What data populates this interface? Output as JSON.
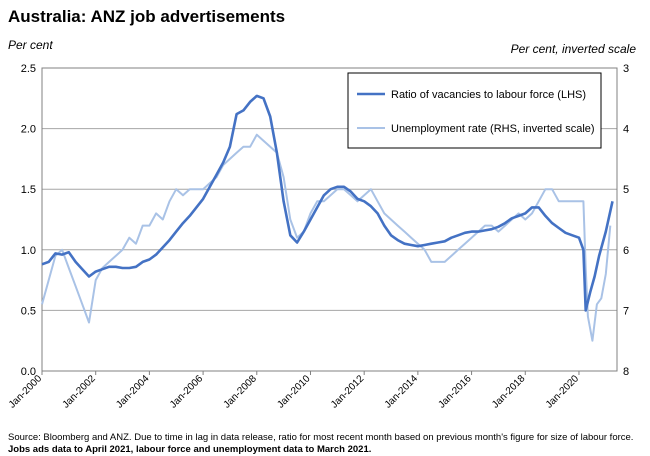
{
  "chart_data": {
    "type": "line",
    "title": "Australia: ANZ job advertisements",
    "ylabel_left": "Per cent",
    "ylabel_right": "Per cent, inverted scale",
    "xlabel": "",
    "ylim_left": [
      0.0,
      2.5
    ],
    "ylim_right": [
      8,
      3
    ],
    "right_axis_inverted": true,
    "yticks_left": [
      "0.0",
      "0.5",
      "1.0",
      "1.5",
      "2.0",
      "2.5"
    ],
    "yticks_right": [
      "8",
      "7",
      "6",
      "5",
      "4",
      "3"
    ],
    "xticks": [
      "Jan-2000",
      "Jan-2002",
      "Jan-2004",
      "Jan-2006",
      "Jan-2008",
      "Jan-2010",
      "Jan-2012",
      "Jan-2014",
      "Jan-2016",
      "Jan-2018",
      "Jan-2020"
    ],
    "grid": "horizontal",
    "legend_position": "top-right",
    "colors": {
      "ratio": "#4472C4",
      "unemployment": "#A9C2E6",
      "grid": "#A6A6A6"
    },
    "series": [
      {
        "name": "Ratio of vacancies to labour force (LHS)",
        "axis": "left",
        "points": [
          [
            "2000-01",
            0.88
          ],
          [
            "2000-04",
            0.9
          ],
          [
            "2000-07",
            0.97
          ],
          [
            "2000-10",
            0.96
          ],
          [
            "2001-01",
            0.98
          ],
          [
            "2001-04",
            0.9
          ],
          [
            "2001-07",
            0.84
          ],
          [
            "2001-10",
            0.78
          ],
          [
            "2002-01",
            0.82
          ],
          [
            "2002-04",
            0.84
          ],
          [
            "2002-07",
            0.86
          ],
          [
            "2002-10",
            0.86
          ],
          [
            "2003-01",
            0.85
          ],
          [
            "2003-04",
            0.85
          ],
          [
            "2003-07",
            0.86
          ],
          [
            "2003-10",
            0.9
          ],
          [
            "2004-01",
            0.92
          ],
          [
            "2004-04",
            0.96
          ],
          [
            "2004-07",
            1.02
          ],
          [
            "2004-10",
            1.08
          ],
          [
            "2005-01",
            1.15
          ],
          [
            "2005-04",
            1.22
          ],
          [
            "2005-07",
            1.28
          ],
          [
            "2005-10",
            1.35
          ],
          [
            "2006-01",
            1.42
          ],
          [
            "2006-04",
            1.52
          ],
          [
            "2006-07",
            1.62
          ],
          [
            "2006-10",
            1.72
          ],
          [
            "2007-01",
            1.85
          ],
          [
            "2007-04",
            2.12
          ],
          [
            "2007-07",
            2.15
          ],
          [
            "2007-10",
            2.22
          ],
          [
            "2008-01",
            2.27
          ],
          [
            "2008-04",
            2.25
          ],
          [
            "2008-07",
            2.1
          ],
          [
            "2008-10",
            1.8
          ],
          [
            "2009-01",
            1.4
          ],
          [
            "2009-04",
            1.12
          ],
          [
            "2009-07",
            1.06
          ],
          [
            "2009-10",
            1.15
          ],
          [
            "2010-01",
            1.25
          ],
          [
            "2010-04",
            1.35
          ],
          [
            "2010-07",
            1.45
          ],
          [
            "2010-10",
            1.5
          ],
          [
            "2011-01",
            1.52
          ],
          [
            "2011-04",
            1.52
          ],
          [
            "2011-07",
            1.48
          ],
          [
            "2011-10",
            1.42
          ],
          [
            "2012-01",
            1.4
          ],
          [
            "2012-04",
            1.36
          ],
          [
            "2012-07",
            1.3
          ],
          [
            "2012-10",
            1.2
          ],
          [
            "2013-01",
            1.12
          ],
          [
            "2013-04",
            1.08
          ],
          [
            "2013-07",
            1.05
          ],
          [
            "2013-10",
            1.04
          ],
          [
            "2014-01",
            1.03
          ],
          [
            "2014-04",
            1.04
          ],
          [
            "2014-07",
            1.05
          ],
          [
            "2014-10",
            1.06
          ],
          [
            "2015-01",
            1.07
          ],
          [
            "2015-04",
            1.1
          ],
          [
            "2015-07",
            1.12
          ],
          [
            "2015-10",
            1.14
          ],
          [
            "2016-01",
            1.15
          ],
          [
            "2016-04",
            1.15
          ],
          [
            "2016-07",
            1.16
          ],
          [
            "2016-10",
            1.17
          ],
          [
            "2017-01",
            1.19
          ],
          [
            "2017-04",
            1.22
          ],
          [
            "2017-07",
            1.26
          ],
          [
            "2017-10",
            1.28
          ],
          [
            "2018-01",
            1.3
          ],
          [
            "2018-04",
            1.35
          ],
          [
            "2018-07",
            1.35
          ],
          [
            "2018-10",
            1.28
          ],
          [
            "2019-01",
            1.22
          ],
          [
            "2019-04",
            1.18
          ],
          [
            "2019-07",
            1.14
          ],
          [
            "2019-10",
            1.12
          ],
          [
            "2020-01",
            1.1
          ],
          [
            "2020-03",
            1.0
          ],
          [
            "2020-04",
            0.5
          ],
          [
            "2020-06",
            0.65
          ],
          [
            "2020-08",
            0.78
          ],
          [
            "2020-10",
            0.95
          ],
          [
            "2021-01",
            1.15
          ],
          [
            "2021-04",
            1.4
          ]
        ]
      },
      {
        "name": "Unemployment rate (RHS, inverted scale)",
        "axis": "right",
        "points": [
          [
            "2000-01",
            6.9
          ],
          [
            "2000-04",
            6.5
          ],
          [
            "2000-07",
            6.1
          ],
          [
            "2000-10",
            6.0
          ],
          [
            "2001-01",
            6.3
          ],
          [
            "2001-04",
            6.6
          ],
          [
            "2001-07",
            6.9
          ],
          [
            "2001-10",
            7.2
          ],
          [
            "2002-01",
            6.5
          ],
          [
            "2002-04",
            6.3
          ],
          [
            "2002-07",
            6.2
          ],
          [
            "2002-10",
            6.1
          ],
          [
            "2003-01",
            6.0
          ],
          [
            "2003-04",
            5.8
          ],
          [
            "2003-07",
            5.9
          ],
          [
            "2003-10",
            5.6
          ],
          [
            "2004-01",
            5.6
          ],
          [
            "2004-04",
            5.4
          ],
          [
            "2004-07",
            5.5
          ],
          [
            "2004-10",
            5.2
          ],
          [
            "2005-01",
            5.0
          ],
          [
            "2005-04",
            5.1
          ],
          [
            "2005-07",
            5.0
          ],
          [
            "2005-10",
            5.0
          ],
          [
            "2006-01",
            5.0
          ],
          [
            "2006-04",
            4.9
          ],
          [
            "2006-07",
            4.8
          ],
          [
            "2006-10",
            4.6
          ],
          [
            "2007-01",
            4.5
          ],
          [
            "2007-04",
            4.4
          ],
          [
            "2007-07",
            4.3
          ],
          [
            "2007-10",
            4.3
          ],
          [
            "2008-01",
            4.1
          ],
          [
            "2008-04",
            4.2
          ],
          [
            "2008-07",
            4.3
          ],
          [
            "2008-10",
            4.4
          ],
          [
            "2009-01",
            4.8
          ],
          [
            "2009-04",
            5.5
          ],
          [
            "2009-07",
            5.8
          ],
          [
            "2009-10",
            5.7
          ],
          [
            "2010-01",
            5.4
          ],
          [
            "2010-04",
            5.2
          ],
          [
            "2010-07",
            5.2
          ],
          [
            "2010-10",
            5.1
          ],
          [
            "2011-01",
            5.0
          ],
          [
            "2011-04",
            5.0
          ],
          [
            "2011-07",
            5.1
          ],
          [
            "2011-10",
            5.2
          ],
          [
            "2012-01",
            5.1
          ],
          [
            "2012-04",
            5.0
          ],
          [
            "2012-07",
            5.2
          ],
          [
            "2012-10",
            5.4
          ],
          [
            "2013-01",
            5.5
          ],
          [
            "2013-04",
            5.6
          ],
          [
            "2013-07",
            5.7
          ],
          [
            "2013-10",
            5.8
          ],
          [
            "2014-01",
            5.9
          ],
          [
            "2014-04",
            6.0
          ],
          [
            "2014-07",
            6.2
          ],
          [
            "2014-10",
            6.2
          ],
          [
            "2015-01",
            6.2
          ],
          [
            "2015-04",
            6.1
          ],
          [
            "2015-07",
            6.0
          ],
          [
            "2015-10",
            5.9
          ],
          [
            "2016-01",
            5.8
          ],
          [
            "2016-04",
            5.7
          ],
          [
            "2016-07",
            5.6
          ],
          [
            "2016-10",
            5.6
          ],
          [
            "2017-01",
            5.7
          ],
          [
            "2017-04",
            5.6
          ],
          [
            "2017-07",
            5.5
          ],
          [
            "2017-10",
            5.4
          ],
          [
            "2018-01",
            5.5
          ],
          [
            "2018-04",
            5.4
          ],
          [
            "2018-07",
            5.2
          ],
          [
            "2018-10",
            5.0
          ],
          [
            "2019-01",
            5.0
          ],
          [
            "2019-04",
            5.2
          ],
          [
            "2019-07",
            5.2
          ],
          [
            "2019-10",
            5.2
          ],
          [
            "2020-01",
            5.2
          ],
          [
            "2020-03",
            5.2
          ],
          [
            "2020-04",
            6.3
          ],
          [
            "2020-05",
            7.1
          ],
          [
            "2020-07",
            7.5
          ],
          [
            "2020-09",
            6.9
          ],
          [
            "2020-11",
            6.8
          ],
          [
            "2021-01",
            6.4
          ],
          [
            "2021-03",
            5.6
          ]
        ]
      }
    ],
    "source_note": "Source: Bloomberg and ANZ.  Due to time in lag in data release, ratio for most recent month based on previous month's figure for size of labour force.",
    "source_note_bold": "Jobs ads data to April 2021, labour force and unemployment data to March 2021."
  }
}
